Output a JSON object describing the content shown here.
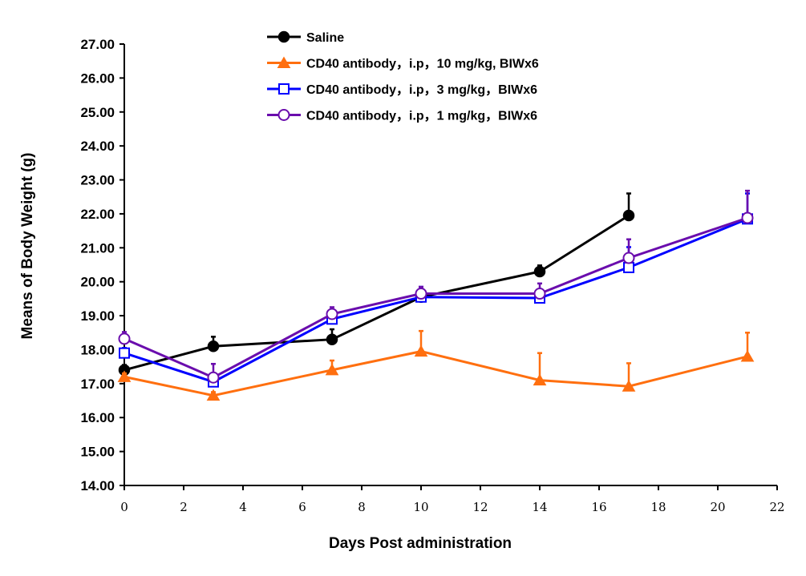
{
  "chart_data": {
    "type": "line",
    "xlabel": "Days Post administration",
    "ylabel": "Means of Body Weight (g)",
    "xlim": [
      0,
      22
    ],
    "ylim": [
      14,
      27
    ],
    "x_ticks": [
      "0",
      "2",
      "4",
      "6",
      "8",
      "10",
      "12",
      "14",
      "16",
      "18",
      "20",
      "22"
    ],
    "y_ticks": [
      "14.00",
      "15.00",
      "16.00",
      "17.00",
      "18.00",
      "19.00",
      "20.00",
      "21.00",
      "22.00",
      "23.00",
      "24.00",
      "25.00",
      "26.00",
      "27.00"
    ],
    "grid": false,
    "legend_placement": "top-center",
    "series": [
      {
        "name": "Saline",
        "color": "#000000",
        "marker": "filled-circle",
        "x": [
          0,
          3,
          7,
          10,
          14,
          17
        ],
        "y": [
          17.4,
          18.1,
          18.3,
          19.55,
          20.3,
          21.95
        ],
        "err": [
          0.15,
          0.28,
          0.3,
          0.2,
          0.18,
          0.65
        ]
      },
      {
        "name": "CD40 antibody，i.p，10 mg/kg, BIWx6",
        "color": "#FF6F0F",
        "marker": "filled-triangle",
        "x": [
          0,
          3,
          7,
          10,
          14,
          17,
          21
        ],
        "y": [
          17.2,
          16.65,
          17.4,
          17.95,
          17.1,
          16.92,
          17.8
        ],
        "err": [
          0.1,
          0.1,
          0.28,
          0.6,
          0.8,
          0.68,
          0.7
        ]
      },
      {
        "name": "CD40 antibody，i.p，3 mg/kg，BIWx6",
        "color": "#0000FF",
        "marker": "open-square",
        "x": [
          0,
          3,
          7,
          10,
          14,
          17,
          21
        ],
        "y": [
          17.9,
          17.05,
          18.9,
          19.55,
          19.52,
          20.42,
          21.85
        ],
        "err": [
          0.15,
          0.2,
          0.25,
          0.3,
          0.15,
          0.6,
          0.75
        ]
      },
      {
        "name": "CD40 antibody，i.p，1 mg/kg，BIWx6",
        "color": "#6A0DAD",
        "marker": "open-circle",
        "x": [
          0,
          3,
          7,
          10,
          14,
          17,
          21
        ],
        "y": [
          18.32,
          17.18,
          19.05,
          19.65,
          19.65,
          20.7,
          21.88
        ],
        "err": [
          0.2,
          0.4,
          0.2,
          0.2,
          0.3,
          0.55,
          0.8
        ]
      }
    ]
  }
}
